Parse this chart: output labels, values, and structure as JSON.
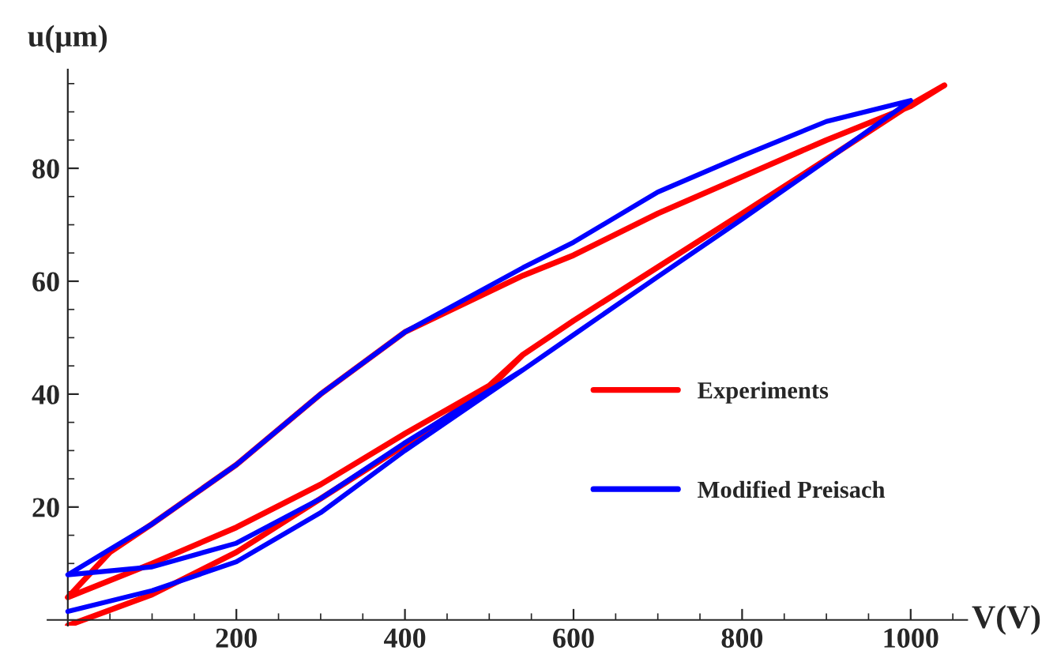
{
  "chart_data": {
    "type": "line",
    "xlabel": "V(V)",
    "ylabel": "u(μm)",
    "xlim": [
      -24,
      1067
    ],
    "ylim": [
      -1,
      97.5
    ],
    "xticks": [
      200,
      400,
      600,
      800,
      1000
    ],
    "yticks": [
      20,
      40,
      60,
      80
    ],
    "grid": false,
    "legend": "right",
    "marker": "none",
    "line_style": "solid",
    "series": [
      {
        "name": "Experiments",
        "color": "#ff0000",
        "x": [
          0,
          100,
          200,
          300,
          400,
          500,
          540,
          600,
          700,
          800,
          900,
          1000,
          1040,
          1000,
          900,
          800,
          700,
          600,
          540,
          400,
          300,
          200,
          100,
          50,
          0,
          100,
          200,
          300,
          400,
          500,
          540,
          600,
          700,
          800,
          900,
          1000,
          1040
        ],
        "values": [
          -1,
          4.5,
          12,
          21.5,
          31,
          41,
          47,
          53,
          62.5,
          72,
          81.6,
          91.3,
          94.7,
          91,
          85,
          78.5,
          72,
          64.6,
          61,
          51,
          40,
          27.5,
          17,
          12,
          4,
          10,
          16.4,
          24,
          33,
          41.5,
          47,
          53,
          62.5,
          72,
          81.6,
          91.3,
          94.7
        ]
      },
      {
        "name": "Modified Preisach",
        "color": "#0000ff",
        "x": [
          0,
          100,
          200,
          300,
          400,
          540,
          600,
          700,
          800,
          900,
          1000,
          900,
          800,
          700,
          600,
          540,
          400,
          300,
          200,
          100,
          50,
          0,
          100,
          200,
          300,
          400,
          540,
          600,
          700,
          800,
          900,
          1000
        ],
        "values": [
          1.5,
          5.2,
          10.3,
          19,
          30,
          44.3,
          50.5,
          60.8,
          71,
          81.4,
          92,
          88.3,
          82.2,
          75.8,
          66.9,
          62.4,
          51,
          40,
          27.5,
          17,
          12.5,
          8,
          9.4,
          13.6,
          21.5,
          31.4,
          44.3,
          50.5,
          60.8,
          71,
          81.4,
          92
        ]
      }
    ]
  }
}
